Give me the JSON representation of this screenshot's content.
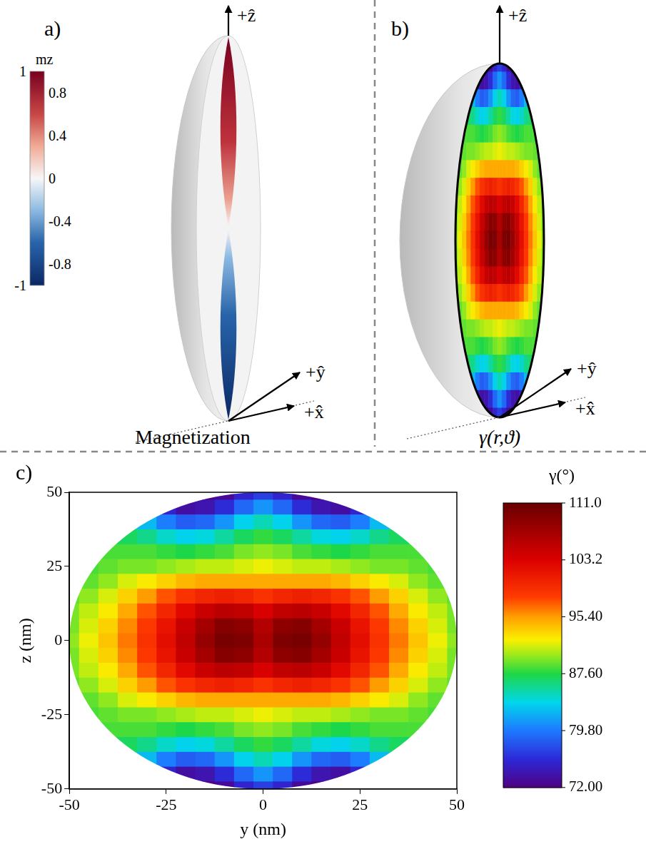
{
  "panel_a": {
    "label": "a)",
    "caption": "Magnetization",
    "axes": {
      "z": "+ẑ",
      "y": "+ŷ",
      "x": "+x̂"
    },
    "colorbar": {
      "title": "mz",
      "range": [
        -1,
        1
      ],
      "ticks": [
        1,
        0.8,
        0.4,
        0,
        -0.4,
        -0.8,
        -1
      ]
    }
  },
  "panel_b": {
    "label": "b)",
    "caption": "γ(r,ϑ)",
    "axes": {
      "z": "+ẑ",
      "y": "+ŷ",
      "x": "+x̂"
    }
  },
  "chart_data": {
    "type": "heatmap",
    "panel_label": "c)",
    "x_label": "y (nm)",
    "y_label": "z (nm)",
    "x": [
      -50,
      -45,
      -40,
      -35,
      -30,
      -25,
      -20,
      -15,
      -10,
      -5,
      0,
      5,
      10,
      15,
      20,
      25,
      30,
      35,
      40,
      45,
      50
    ],
    "y": [
      50,
      45,
      40,
      35,
      30,
      25,
      20,
      15,
      10,
      5,
      0,
      -5,
      -10,
      -15,
      -20,
      -25,
      -30,
      -35,
      -40,
      -45,
      -50
    ],
    "cells": [
      [
        null,
        null,
        null,
        null,
        null,
        null,
        72.5,
        72,
        73,
        75.5,
        77,
        75.5,
        73,
        72,
        72.5,
        null,
        null,
        null,
        null,
        null,
        null
      ],
      [
        null,
        null,
        null,
        null,
        79,
        75.5,
        73.5,
        74,
        76,
        79,
        81,
        79,
        76,
        74,
        73.5,
        75.5,
        79,
        null,
        null,
        null,
        null
      ],
      [
        null,
        null,
        null,
        85,
        82.5,
        80,
        78.5,
        79,
        81,
        83.5,
        85,
        83.5,
        81,
        79,
        78.5,
        80,
        82.5,
        85,
        null,
        null,
        null
      ],
      [
        null,
        null,
        87.5,
        87,
        86,
        84.5,
        83.5,
        84,
        85.5,
        87,
        88,
        87,
        85.5,
        84,
        83.5,
        84.5,
        86,
        87,
        87.5,
        null,
        null
      ],
      [
        null,
        88,
        88.5,
        88.5,
        88.5,
        88,
        87.5,
        88,
        88.5,
        89.5,
        90,
        89.5,
        88.5,
        88,
        87.5,
        88,
        88.5,
        88.5,
        88.5,
        88,
        null
      ],
      [
        null,
        88.5,
        89,
        89.5,
        89.5,
        90,
        90.5,
        91,
        91,
        91.5,
        92,
        91.5,
        91,
        91,
        90.5,
        90,
        89.5,
        89.5,
        89,
        88.5,
        null
      ],
      [
        88.5,
        89,
        90,
        91.5,
        92.5,
        93.5,
        94.5,
        95,
        95,
        95,
        95,
        95,
        95,
        95,
        94.5,
        93.5,
        92.5,
        91.5,
        90,
        89,
        88.5
      ],
      [
        89,
        90,
        91.5,
        93.5,
        95.5,
        97.5,
        99,
        100,
        100.5,
        100,
        99,
        100,
        100.5,
        100,
        99,
        97.5,
        95.5,
        93.5,
        91.5,
        90,
        89
      ],
      [
        89.5,
        91,
        92.5,
        95,
        97.5,
        100,
        102.5,
        104.5,
        105.5,
        105,
        103.5,
        105,
        105.5,
        104.5,
        102.5,
        100,
        97.5,
        95,
        92.5,
        91,
        89.5
      ],
      [
        89.5,
        91.5,
        93.5,
        96,
        98.5,
        101.5,
        104.5,
        107,
        109,
        108.5,
        106,
        108.5,
        109,
        107,
        104.5,
        101.5,
        98.5,
        96,
        93.5,
        91.5,
        89.5
      ],
      [
        90,
        92,
        94,
        96.5,
        99,
        102,
        105,
        108,
        110,
        109.5,
        106.5,
        109.5,
        110,
        108,
        105,
        102,
        99,
        96.5,
        94,
        92,
        90
      ],
      [
        89.5,
        91.5,
        93.5,
        96,
        98.5,
        101.5,
        104.5,
        107,
        109,
        108.5,
        106,
        108.5,
        109,
        107,
        104.5,
        101.5,
        98.5,
        96,
        93.5,
        91.5,
        89.5
      ],
      [
        89.5,
        91,
        92.5,
        95,
        97.5,
        100,
        102.5,
        104.5,
        105.5,
        105,
        103.5,
        105,
        105.5,
        104.5,
        102.5,
        100,
        97.5,
        95,
        92.5,
        91,
        89.5
      ],
      [
        89,
        90,
        91.5,
        93.5,
        95.5,
        97.5,
        99,
        100,
        100.5,
        100,
        99,
        100,
        100.5,
        100,
        99,
        97.5,
        95.5,
        93.5,
        91.5,
        90,
        89
      ],
      [
        88.5,
        89,
        90,
        91.5,
        92.5,
        93.5,
        94.5,
        95,
        95,
        95,
        95,
        95,
        95,
        95,
        94.5,
        93.5,
        92.5,
        91.5,
        90,
        89,
        88.5
      ],
      [
        null,
        88.5,
        89,
        89.5,
        89.5,
        90,
        90.5,
        91,
        91,
        91.5,
        92,
        91.5,
        91,
        91,
        90.5,
        90,
        89.5,
        89.5,
        89,
        88.5,
        null
      ],
      [
        null,
        88,
        88.5,
        88.5,
        88.5,
        88,
        87.5,
        88,
        88.5,
        89.5,
        90,
        89.5,
        88.5,
        88,
        87.5,
        88,
        88.5,
        88.5,
        88.5,
        88,
        null
      ],
      [
        null,
        null,
        87.5,
        87,
        86,
        84.5,
        83.5,
        84,
        85.5,
        87,
        88,
        87,
        85.5,
        84,
        83.5,
        84.5,
        86,
        87,
        87.5,
        null,
        null
      ],
      [
        null,
        null,
        null,
        85,
        82.5,
        80,
        78.5,
        79,
        81,
        83.5,
        85,
        83.5,
        81,
        79,
        78.5,
        80,
        82.5,
        85,
        null,
        null,
        null
      ],
      [
        null,
        null,
        null,
        null,
        79,
        75.5,
        73.5,
        74,
        76,
        79,
        81,
        79,
        76,
        74,
        73.5,
        75.5,
        79,
        null,
        null,
        null,
        null
      ],
      [
        null,
        null,
        null,
        null,
        null,
        null,
        72.5,
        72,
        73,
        75.5,
        77,
        75.5,
        73,
        72,
        72.5,
        null,
        null,
        null,
        null,
        null,
        null
      ]
    ],
    "xlim": [
      -50,
      50
    ],
    "ylim": [
      -50,
      50
    ],
    "xticks": [
      -50,
      -25,
      0,
      25,
      50
    ],
    "yticks": [
      -50,
      -25,
      0,
      25,
      50
    ],
    "colorbar": {
      "title": "γ(°)",
      "range": [
        72,
        111
      ],
      "ticks": [
        {
          "value": 72,
          "label": "72.00"
        },
        {
          "value": 79.8,
          "label": "79.80"
        },
        {
          "value": 87.6,
          "label": "87.60"
        },
        {
          "value": 95.4,
          "label": "95.40"
        },
        {
          "value": 103.2,
          "label": "103.2"
        },
        {
          "value": 111,
          "label": "111.0"
        }
      ]
    },
    "grid": false
  }
}
